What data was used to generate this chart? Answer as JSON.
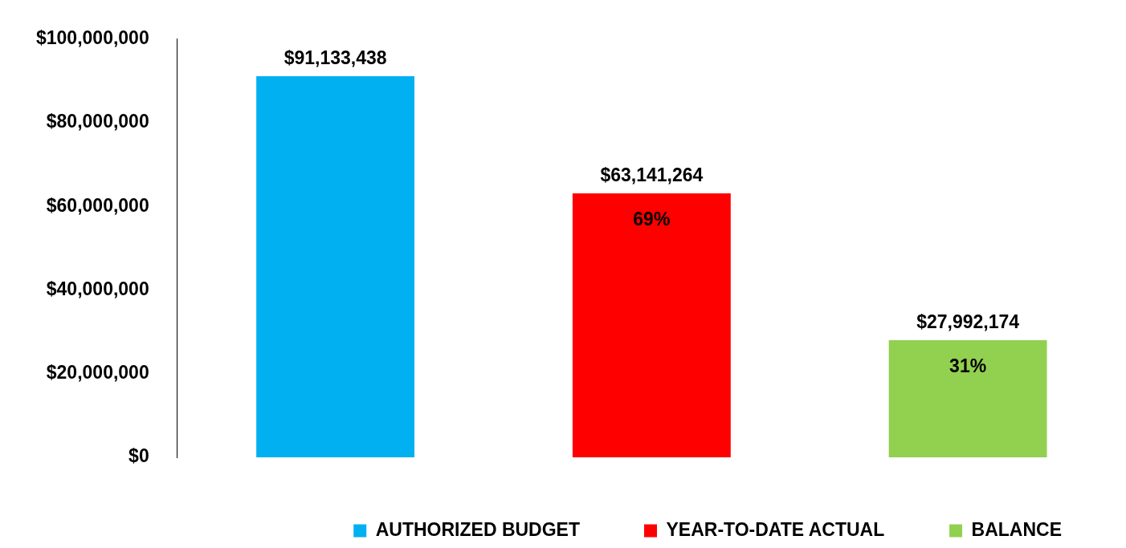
{
  "chart_data": {
    "type": "bar",
    "categories": [
      null,
      null,
      null
    ],
    "series": [
      {
        "name": "AUTHORIZED BUDGET",
        "color": "#00b0f0",
        "values": [
          91133438,
          null,
          null
        ],
        "value_labels": [
          "$91,133,438",
          null,
          null
        ]
      },
      {
        "name": "YEAR-TO-DATE ACTUAL",
        "color": "#ff0000",
        "values": [
          null,
          63141264,
          null
        ],
        "value_labels": [
          null,
          "$63,141,264",
          null
        ]
      },
      {
        "name": "BALANCE",
        "color": "#92d050",
        "values": [
          null,
          null,
          27992174
        ],
        "value_labels": [
          null,
          null,
          "$27,992,174"
        ]
      }
    ],
    "ylim": [
      0,
      100000000
    ],
    "yticks": [
      {
        "value": 0,
        "label": "$0"
      },
      {
        "value": 20000000,
        "label": "$20,000,000"
      },
      {
        "value": 40000000,
        "label": "$40,000,000"
      },
      {
        "value": 60000000,
        "label": "$60,000,000"
      },
      {
        "value": 80000000,
        "label": "$80,000,000"
      },
      {
        "value": 100000000,
        "label": "$100,000,000"
      }
    ],
    "annotations": [
      "69%",
      "31%"
    ],
    "tick_labels": "y",
    "grid": false,
    "stacked": true,
    "legend": "bottom"
  }
}
